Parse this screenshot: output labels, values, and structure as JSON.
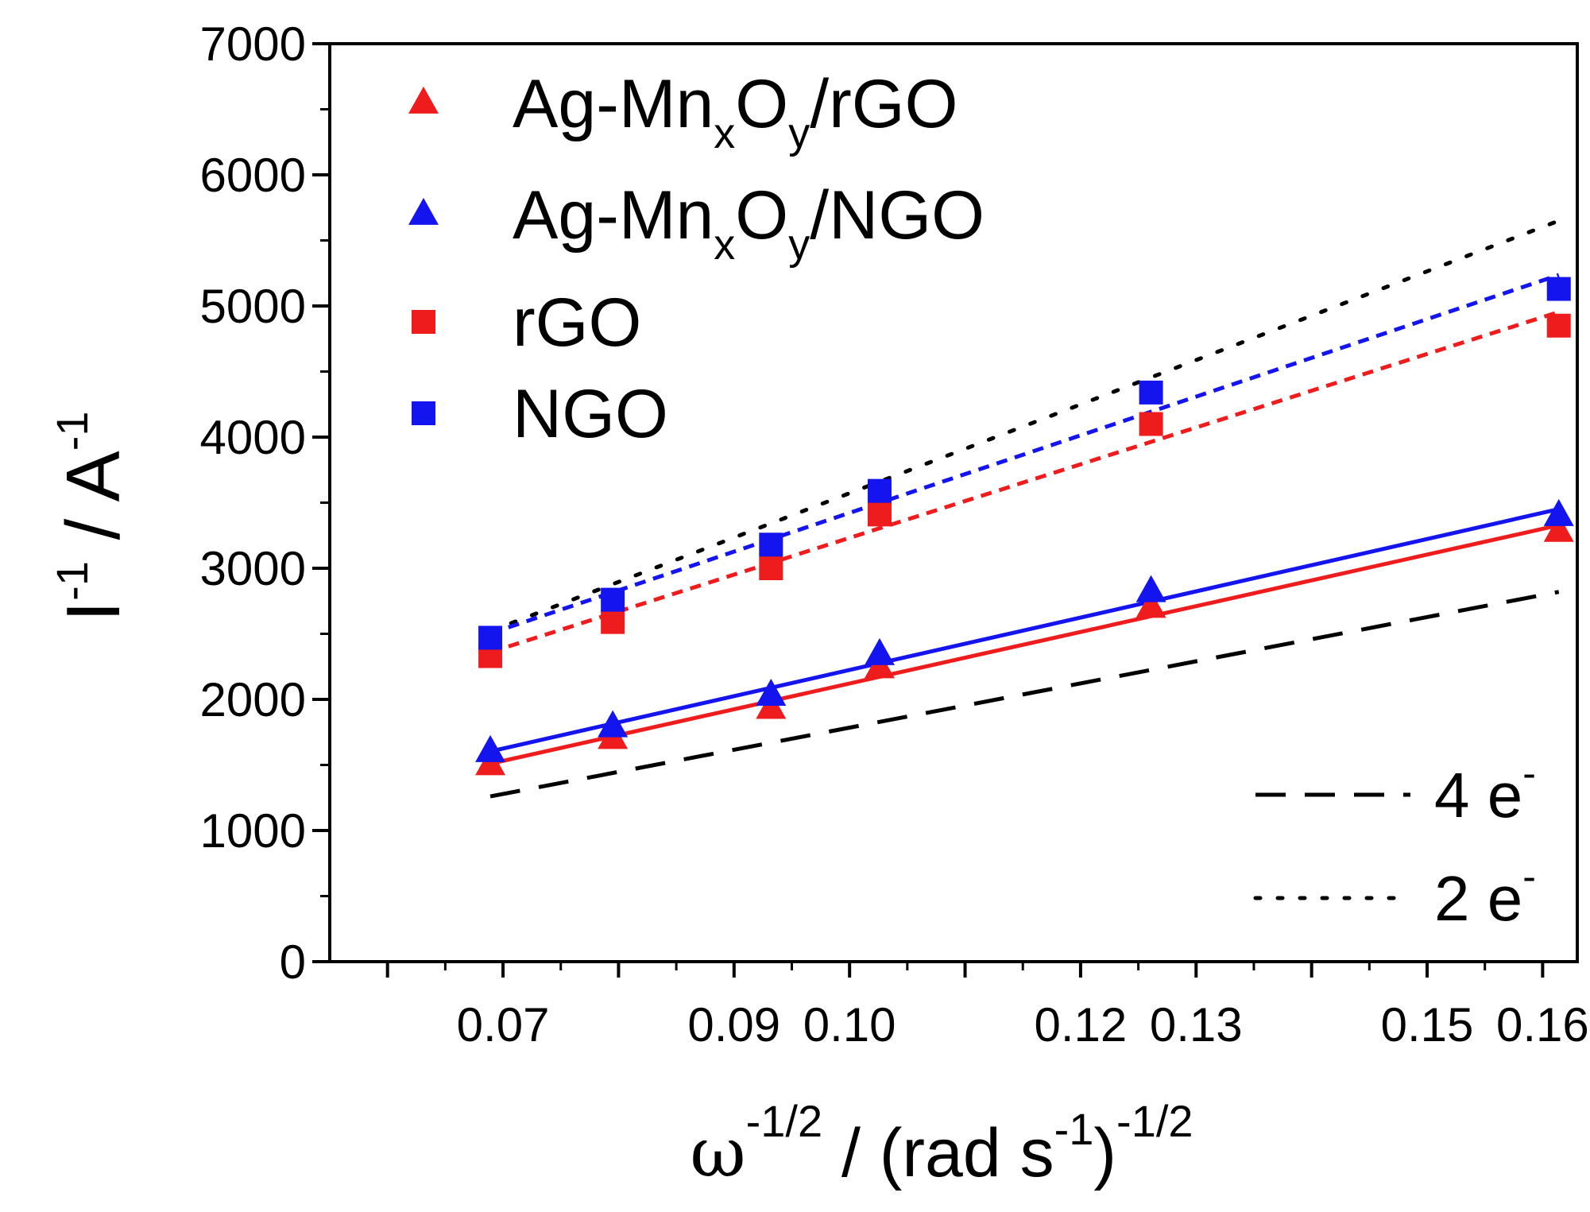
{
  "chart_data": {
    "type": "scatter",
    "x_axis": {
      "label": "ω^-1/2 / (rad s^-1)^-1/2",
      "label_parts": {
        "omega": "ω",
        "omega_exp": "-1/2",
        "slash": " / (rad s",
        "s_exp": "-1",
        "close": ")",
        "outer_exp": "-1/2"
      },
      "ticks": [
        0.06,
        0.07,
        0.08,
        0.09,
        0.1,
        0.11,
        0.12,
        0.13,
        0.14,
        0.15,
        0.16
      ],
      "tick_labels": [
        "0.07",
        "0.09",
        "0.10",
        "0.12",
        "0.13",
        "0.15",
        "0.16"
      ],
      "tick_label_positions": [
        0.07,
        0.09,
        0.1,
        0.12,
        0.13,
        0.15,
        0.16
      ],
      "range": [
        0.055,
        0.163
      ]
    },
    "y_axis": {
      "label": "I^-1 / A^-1",
      "label_parts": {
        "I": "I",
        "I_exp": "-1",
        "slash": " / A",
        "A_exp": "-1"
      },
      "ticks": [
        0,
        1000,
        2000,
        3000,
        4000,
        5000,
        6000,
        7000
      ],
      "tick_labels": [
        "0",
        "1000",
        "2000",
        "3000",
        "4000",
        "5000",
        "6000",
        "7000"
      ],
      "minor_ticks": [
        500,
        1500,
        2500,
        3500,
        4500,
        5500,
        6500
      ],
      "range": [
        0,
        7000
      ]
    },
    "series": [
      {
        "name": "Ag-MnxOy/rGO",
        "legend": {
          "pre": "Ag-Mn",
          "sub1": "x",
          "mid": "O",
          "sub2": "y",
          "post": "/rGO"
        },
        "marker": "triangle",
        "color": "#ee1c1c",
        "line_style": "solid",
        "x": [
          0.0689,
          0.0795,
          0.0932,
          0.1026,
          0.1261,
          0.1614
        ],
        "y": [
          1500,
          1700,
          1930,
          2240,
          2700,
          3280
        ]
      },
      {
        "name": "Ag-MnxOy/NGO",
        "legend": {
          "pre": "Ag-Mn",
          "sub1": "x",
          "mid": "O",
          "sub2": "y",
          "post": "/NGO"
        },
        "marker": "triangle",
        "color": "#1414ee",
        "line_style": "solid",
        "x": [
          0.0689,
          0.0795,
          0.0932,
          0.1026,
          0.1261,
          0.1614
        ],
        "y": [
          1600,
          1790,
          2030,
          2340,
          2820,
          3400
        ]
      },
      {
        "name": "rGO",
        "legend": {
          "pre": "rGO"
        },
        "marker": "square",
        "color": "#ee1c1c",
        "line_style": "dashed",
        "x": [
          0.0689,
          0.0795,
          0.0932,
          0.1026,
          0.1261,
          0.1614
        ],
        "y": [
          2330,
          2590,
          3000,
          3410,
          4100,
          4850
        ]
      },
      {
        "name": "NGO",
        "legend": {
          "pre": "NGO"
        },
        "marker": "square",
        "color": "#1414ee",
        "line_style": "dashed",
        "x": [
          0.0689,
          0.0795,
          0.0932,
          0.1026,
          0.1261,
          0.1614
        ],
        "y": [
          2470,
          2760,
          3180,
          3590,
          4340,
          5130
        ]
      }
    ],
    "reference_lines": [
      {
        "name": "4 e-",
        "label": "4 e",
        "label_exp": "-",
        "style": "dashed",
        "color": "#000000",
        "x": [
          0.0689,
          0.1614
        ],
        "y": [
          1260,
          2820
        ]
      },
      {
        "name": "2 e-",
        "label": "2 e",
        "label_exp": "-",
        "style": "dotted",
        "color": "#000000",
        "x": [
          0.0689,
          0.1614
        ],
        "y": [
          2520,
          5650
        ]
      }
    ],
    "legend_position": "top-left",
    "grid": false
  }
}
